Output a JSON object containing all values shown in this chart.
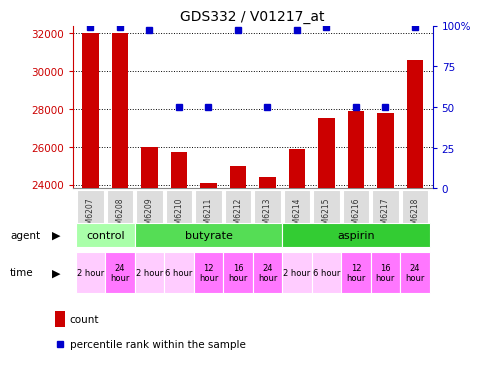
{
  "title": "GDS332 / V01217_at",
  "samples": [
    "GSM6207",
    "GSM6208",
    "GSM6209",
    "GSM6210",
    "GSM6211",
    "GSM6212",
    "GSM6213",
    "GSM6214",
    "GSM6215",
    "GSM6216",
    "GSM6217",
    "GSM6218"
  ],
  "counts": [
    32000,
    32000,
    26000,
    25700,
    24100,
    25000,
    24400,
    25900,
    27500,
    27900,
    27800,
    30600
  ],
  "percentile_ranks": [
    99,
    99,
    97,
    50,
    50,
    97,
    50,
    97,
    99,
    50,
    50,
    99
  ],
  "ylim_left": [
    23800,
    32400
  ],
  "ylim_right": [
    0,
    100
  ],
  "yticks_left": [
    24000,
    26000,
    28000,
    30000,
    32000
  ],
  "yticks_right": [
    0,
    25,
    50,
    75,
    100
  ],
  "bar_color": "#cc0000",
  "dot_color": "#0000cc",
  "agent_groups": [
    {
      "label": "control",
      "start": 0,
      "end": 2,
      "color": "#aaffaa"
    },
    {
      "label": "butyrate",
      "start": 2,
      "end": 7,
      "color": "#55dd55"
    },
    {
      "label": "aspirin",
      "start": 7,
      "end": 12,
      "color": "#33cc33"
    }
  ],
  "time_labels": [
    "2 hour",
    "24\nhour",
    "2 hour",
    "6 hour",
    "12\nhour",
    "16\nhour",
    "24\nhour",
    "2 hour",
    "6 hour",
    "12\nhour",
    "16\nhour",
    "24\nhour"
  ],
  "time_colors_small": [
    "#ffccff",
    "#ff77ff",
    "#ffccff",
    "#ffccff",
    "#ff77ff",
    "#ff77ff",
    "#ff77ff",
    "#ffccff",
    "#ffccff",
    "#ff77ff",
    "#ff77ff",
    "#ff77ff"
  ],
  "bar_width": 0.55,
  "background_color": "#ffffff",
  "left_axis_color": "#cc0000",
  "right_axis_color": "#0000cc",
  "xtick_bg": "#dddddd"
}
